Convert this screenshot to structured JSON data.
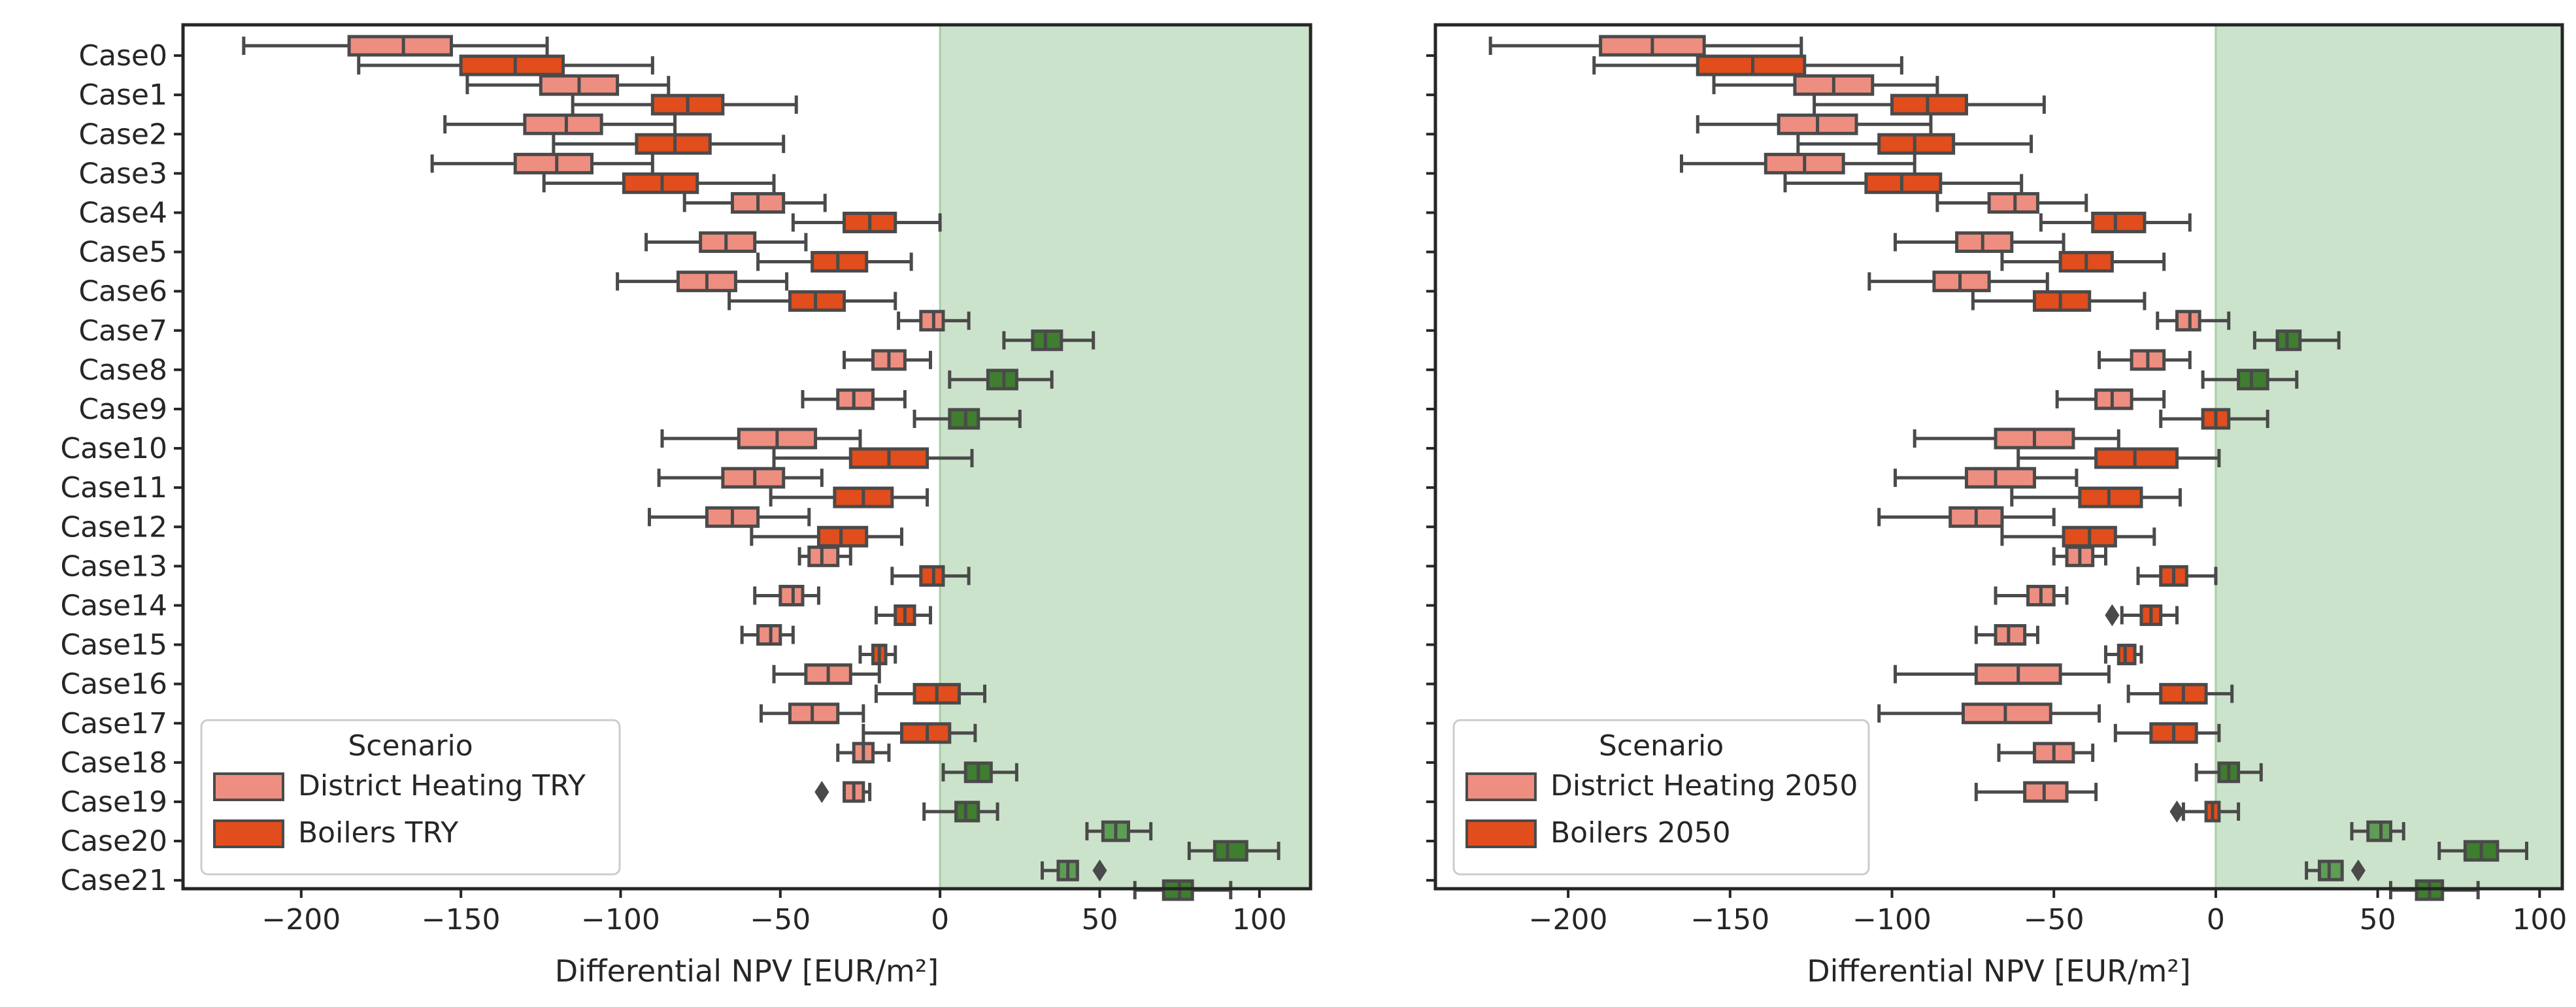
{
  "colors": {
    "district": "#ee8e80",
    "boiler": "#e14d1c",
    "district_pos": "#5e9d55",
    "boiler_pos": "#3e7e2e",
    "line": "#4a4a4a",
    "positive_region": "#cce3cb",
    "axes": "#262626"
  },
  "chart_data": [
    {
      "type": "box",
      "panel": "left",
      "xlabel": "Differential NPV [EUR/m²]",
      "xlim": [
        -237,
        116
      ],
      "xticks": [
        -200,
        -150,
        -100,
        -50,
        0,
        50,
        100
      ],
      "xtick_labels": [
        "−200",
        "−150",
        "−100",
        "−50",
        "0",
        "50",
        "100"
      ],
      "positive_region": [
        0,
        116
      ],
      "categories": [
        "Case0",
        "Case1",
        "Case2",
        "Case3",
        "Case4",
        "Case5",
        "Case6",
        "Case7",
        "Case8",
        "Case9",
        "Case10",
        "Case11",
        "Case12",
        "Case13",
        "Case14",
        "Case15",
        "Case16",
        "Case17",
        "Case18",
        "Case19",
        "Case20",
        "Case21"
      ],
      "legend": {
        "title": "Scenario",
        "location": "lower-left",
        "entries": [
          "District Heating TRY",
          "Boilers TRY"
        ]
      },
      "series": [
        {
          "name": "District Heating TRY",
          "boxes": [
            [
              -218,
              -185,
              -168,
              -153,
              -123
            ],
            [
              -148,
              -125,
              -113,
              -101,
              -85
            ],
            [
              -155,
              -130,
              -117,
              -106,
              -83
            ],
            [
              -159,
              -133,
              -120,
              -109,
              -90
            ],
            [
              -80,
              -65,
              -57,
              -49,
              -36
            ],
            [
              -92,
              -75,
              -67,
              -58,
              -42
            ],
            [
              -101,
              -82,
              -73,
              -64,
              -48
            ],
            [
              -13,
              -6,
              -2,
              1,
              9
            ],
            [
              -30,
              -21,
              -16,
              -11,
              -3
            ],
            [
              -43,
              -32,
              -27,
              -21,
              -11
            ],
            [
              -87,
              -63,
              -51,
              -39,
              -25
            ],
            [
              -88,
              -68,
              -58,
              -49,
              -37
            ],
            [
              -91,
              -73,
              -65,
              -57,
              -41
            ],
            [
              -44,
              -41,
              -37,
              -32,
              -28
            ],
            [
              -58,
              -50,
              -46,
              -43,
              -38
            ],
            [
              -62,
              -57,
              -53,
              -50,
              -46
            ],
            [
              -52,
              -42,
              -35,
              -28,
              -19
            ],
            [
              -56,
              -47,
              -40,
              -32,
              -24
            ],
            [
              -32,
              -27,
              -24,
              -21,
              -16
            ],
            [
              -28,
              -30,
              -27,
              -24,
              -22
            ],
            [
              46,
              51,
              55,
              59,
              66
            ],
            [
              32,
              37,
              40,
              43,
              43
            ]
          ],
          "outliers": [
            [],
            [],
            [],
            [],
            [],
            [],
            [],
            [],
            [],
            [],
            [],
            [],
            [],
            [],
            [],
            [],
            [],
            [],
            [],
            [
              -37
            ],
            [],
            [
              50
            ]
          ]
        },
        {
          "name": "Boilers TRY",
          "boxes": [
            [
              -182,
              -150,
              -133,
              -118,
              -90
            ],
            [
              -115,
              -90,
              -79,
              -68,
              -45
            ],
            [
              -121,
              -95,
              -83,
              -72,
              -49
            ],
            [
              -124,
              -99,
              -87,
              -76,
              -52
            ],
            [
              -46,
              -30,
              -22,
              -14,
              0
            ],
            [
              -57,
              -40,
              -32,
              -23,
              -9
            ],
            [
              -66,
              -47,
              -39,
              -30,
              -14
            ],
            [
              20,
              29,
              33,
              38,
              48
            ],
            [
              3,
              15,
              20,
              24,
              35
            ],
            [
              -8,
              3,
              8,
              12,
              25
            ],
            [
              -52,
              -28,
              -16,
              -4,
              10
            ],
            [
              -53,
              -33,
              -24,
              -15,
              -4
            ],
            [
              -59,
              -38,
              -31,
              -23,
              -12
            ],
            [
              -15,
              -6,
              -2,
              1,
              9
            ],
            [
              -20,
              -14,
              -11,
              -8,
              -3
            ],
            [
              -25,
              -21,
              -19,
              -17,
              -14
            ],
            [
              -20,
              -8,
              -1,
              6,
              14
            ],
            [
              -24,
              -12,
              -4,
              3,
              11
            ],
            [
              1,
              8,
              12,
              16,
              24
            ],
            [
              -5,
              5,
              8,
              12,
              18
            ],
            [
              78,
              86,
              90,
              96,
              106
            ],
            [
              61,
              70,
              75,
              79,
              91
            ]
          ],
          "outliers": [
            [],
            [],
            [],
            [],
            [],
            [],
            [],
            [],
            [],
            [],
            [],
            [],
            [],
            [],
            [],
            [],
            [],
            [],
            [],
            [],
            [],
            []
          ]
        }
      ]
    },
    {
      "type": "box",
      "panel": "right",
      "xlabel": "Differential NPV [EUR/m²]",
      "xlim": [
        -241,
        107
      ],
      "xticks": [
        -200,
        -150,
        -100,
        -50,
        0,
        50,
        100
      ],
      "xtick_labels": [
        "−200",
        "−150",
        "−100",
        "−50",
        "0",
        "50",
        "100"
      ],
      "positive_region": [
        0,
        107
      ],
      "categories": [
        "Case0",
        "Case1",
        "Case2",
        "Case3",
        "Case4",
        "Case5",
        "Case6",
        "Case7",
        "Case8",
        "Case9",
        "Case10",
        "Case11",
        "Case12",
        "Case13",
        "Case14",
        "Case15",
        "Case16",
        "Case17",
        "Case18",
        "Case19",
        "Case20",
        "Case21"
      ],
      "legend": {
        "title": "Scenario",
        "location": "lower-left",
        "entries": [
          "District Heating 2050",
          "Boilers 2050"
        ]
      },
      "series": [
        {
          "name": "District Heating 2050",
          "boxes": [
            [
              -224,
              -190,
              -174,
              -158,
              -128
            ],
            [
              -155,
              -130,
              -118,
              -106,
              -86
            ],
            [
              -160,
              -135,
              -123,
              -111,
              -88
            ],
            [
              -165,
              -139,
              -127,
              -115,
              -93
            ],
            [
              -86,
              -70,
              -62,
              -55,
              -40
            ],
            [
              -99,
              -80,
              -72,
              -63,
              -47
            ],
            [
              -107,
              -87,
              -79,
              -70,
              -52
            ],
            [
              -18,
              -12,
              -8,
              -5,
              4
            ],
            [
              -36,
              -26,
              -21,
              -16,
              -8
            ],
            [
              -49,
              -37,
              -32,
              -26,
              -16
            ],
            [
              -93,
              -68,
              -56,
              -44,
              -30
            ],
            [
              -99,
              -77,
              -68,
              -56,
              -43
            ],
            [
              -104,
              -82,
              -74,
              -66,
              -50
            ],
            [
              -50,
              -46,
              -42,
              -38,
              -34
            ],
            [
              -68,
              -58,
              -54,
              -50,
              -46
            ],
            [
              -74,
              -68,
              -64,
              -59,
              -55
            ],
            [
              -99,
              -74,
              -61,
              -48,
              -33
            ],
            [
              -104,
              -78,
              -65,
              -51,
              -36
            ],
            [
              -67,
              -56,
              -50,
              -44,
              -38
            ],
            [
              -74,
              -59,
              -53,
              -46,
              -37
            ],
            [
              42,
              47,
              51,
              54,
              58
            ],
            [
              28,
              32,
              35,
              39,
              39
            ]
          ],
          "outliers": [
            [],
            [],
            [],
            [],
            [],
            [],
            [],
            [],
            [],
            [],
            [],
            [],
            [],
            [],
            [],
            [],
            [],
            [],
            [],
            [],
            [],
            [
              44
            ]
          ]
        },
        {
          "name": "Boilers 2050",
          "boxes": [
            [
              -192,
              -160,
              -143,
              -127,
              -97
            ],
            [
              -124,
              -100,
              -89,
              -77,
              -53
            ],
            [
              -129,
              -104,
              -93,
              -81,
              -57
            ],
            [
              -133,
              -108,
              -97,
              -85,
              -60
            ],
            [
              -54,
              -38,
              -31,
              -22,
              -8
            ],
            [
              -66,
              -48,
              -40,
              -32,
              -16
            ],
            [
              -75,
              -56,
              -48,
              -39,
              -22
            ],
            [
              12,
              19,
              22,
              26,
              38
            ],
            [
              -4,
              7,
              11,
              16,
              25
            ],
            [
              -17,
              -4,
              0,
              4,
              16
            ],
            [
              -61,
              -37,
              -25,
              -12,
              1
            ],
            [
              -63,
              -42,
              -33,
              -23,
              -11
            ],
            [
              -66,
              -47,
              -39,
              -31,
              -19
            ],
            [
              -24,
              -17,
              -13,
              -9,
              0
            ],
            [
              -29,
              -23,
              -20,
              -17,
              -12
            ],
            [
              -34,
              -30,
              -28,
              -25,
              -23
            ],
            [
              -27,
              -17,
              -10,
              -3,
              5
            ],
            [
              -31,
              -20,
              -13,
              -6,
              1
            ],
            [
              -6,
              1,
              4,
              7,
              14
            ],
            [
              -10,
              -3,
              -1,
              1,
              7
            ],
            [
              69,
              77,
              82,
              87,
              96
            ],
            [
              54,
              62,
              66,
              70,
              81
            ]
          ],
          "outliers": [
            [],
            [],
            [],
            [],
            [],
            [],
            [],
            [],
            [],
            [],
            [],
            [],
            [],
            [],
            [
              -32
            ],
            [],
            [],
            [],
            [],
            [
              -12
            ],
            [],
            []
          ]
        }
      ]
    }
  ]
}
